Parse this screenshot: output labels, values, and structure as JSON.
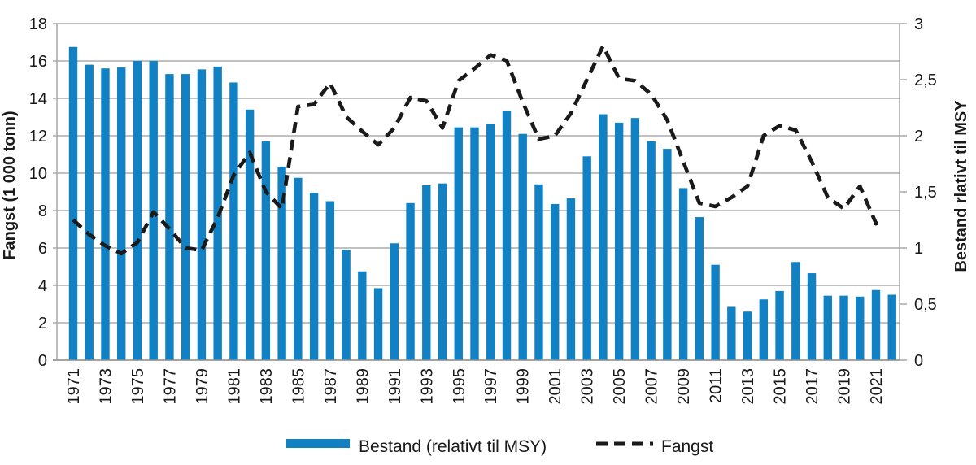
{
  "chart": {
    "left_axis_title": "Fangst (1 000 tonn)",
    "right_axis_title": "Bestand rlativt til MSY",
    "legend": {
      "bar_label": "Bestand (relativt til MSY)",
      "line_label": "Fangst"
    },
    "colors": {
      "bar": "#1181c4",
      "line": "#1a1a1a",
      "grid": "#9c9c9c",
      "text": "#1a1a1a",
      "background": "#ffffff"
    }
  },
  "chart_data": {
    "type": "bar+line",
    "title": "",
    "x_years": [
      1971,
      1972,
      1973,
      1974,
      1975,
      1976,
      1977,
      1978,
      1979,
      1980,
      1981,
      1982,
      1983,
      1984,
      1985,
      1986,
      1987,
      1988,
      1989,
      1990,
      1991,
      1992,
      1993,
      1994,
      1995,
      1996,
      1997,
      1998,
      1999,
      2000,
      2001,
      2002,
      2003,
      2004,
      2005,
      2006,
      2007,
      2008,
      2009,
      2010,
      2011,
      2012,
      2013,
      2014,
      2015,
      2016,
      2017,
      2018,
      2019,
      2020,
      2021,
      2022
    ],
    "x_tick_labels": [
      "1971",
      "1973",
      "1975",
      "1977",
      "1979",
      "1981",
      "1983",
      "1985",
      "1987",
      "1989",
      "1991",
      "1993",
      "1995",
      "1997",
      "1999",
      "2001",
      "2003",
      "2005",
      "2007",
      "2009",
      "2011",
      "2013",
      "2015",
      "2017",
      "2019",
      "2021"
    ],
    "left_axis": {
      "label": "Fangst (1 000 tonn)",
      "min": 0,
      "max": 18,
      "tick_step": 2,
      "tick_labels": [
        "0",
        "2",
        "4",
        "6",
        "8",
        "10",
        "12",
        "14",
        "16",
        "18"
      ]
    },
    "right_axis": {
      "label": "Bestand rlativt til MSY",
      "min": 0,
      "max": 3,
      "tick_step": 0.5,
      "tick_labels": [
        "0",
        "0,5",
        "1",
        "1,5",
        "2",
        "2,5",
        "3"
      ]
    },
    "grid": "horizontal",
    "legend_position": "bottom",
    "series": [
      {
        "name": "Bestand (relativt til MSY)",
        "type": "bar",
        "axis": "left",
        "years": [
          1971,
          1972,
          1973,
          1974,
          1975,
          1976,
          1977,
          1978,
          1979,
          1980,
          1981,
          1982,
          1983,
          1984,
          1985,
          1986,
          1987,
          1988,
          1989,
          1990,
          1991,
          1992,
          1993,
          1994,
          1995,
          1996,
          1997,
          1998,
          1999,
          2000,
          2001,
          2002,
          2003,
          2004,
          2005,
          2006,
          2007,
          2008,
          2009,
          2010,
          2011,
          2012,
          2013,
          2014,
          2015,
          2016,
          2017,
          2018,
          2019,
          2020,
          2021,
          2022
        ],
        "values": [
          16.75,
          15.8,
          15.6,
          15.65,
          16.0,
          16.0,
          15.3,
          15.3,
          15.55,
          15.7,
          14.85,
          13.4,
          11.7,
          10.35,
          9.75,
          8.95,
          8.5,
          5.9,
          4.75,
          3.85,
          6.25,
          8.4,
          9.35,
          9.45,
          12.45,
          12.45,
          12.65,
          13.35,
          12.1,
          9.4,
          8.35,
          8.65,
          10.9,
          13.15,
          12.7,
          12.95,
          11.7,
          11.3,
          9.2,
          7.65,
          5.1,
          2.85,
          2.6,
          3.25,
          3.7,
          5.25,
          4.65,
          3.45,
          3.45,
          3.4,
          3.75,
          3.5
        ]
      },
      {
        "name": "Fangst",
        "type": "line",
        "style": "dashed",
        "axis": "right",
        "years": [
          1971,
          1972,
          1973,
          1974,
          1975,
          1976,
          1977,
          1978,
          1979,
          1980,
          1981,
          1982,
          1983,
          1984,
          1985,
          1986,
          1987,
          1988,
          1989,
          1990,
          1991,
          1992,
          1993,
          1994,
          1995,
          1996,
          1997,
          1998,
          1999,
          2000,
          2001,
          2002,
          2003,
          2004,
          2005,
          2006,
          2007,
          2008,
          2009,
          2010,
          2011,
          2012,
          2013,
          2014,
          2015,
          2016,
          2017,
          2018,
          2019,
          2020,
          2021
        ],
        "values": [
          1.25,
          1.12,
          1.02,
          0.95,
          1.05,
          1.32,
          1.17,
          1.0,
          0.98,
          1.27,
          1.65,
          1.85,
          1.5,
          1.35,
          2.26,
          2.28,
          2.47,
          2.17,
          2.04,
          1.92,
          2.07,
          2.34,
          2.31,
          2.07,
          2.49,
          2.6,
          2.72,
          2.67,
          2.3,
          1.97,
          2.0,
          2.2,
          2.5,
          2.8,
          2.51,
          2.49,
          2.37,
          2.14,
          1.77,
          1.4,
          1.37,
          1.45,
          1.55,
          2.0,
          2.09,
          2.05,
          1.77,
          1.45,
          1.35,
          1.55,
          1.22
        ]
      }
    ]
  }
}
